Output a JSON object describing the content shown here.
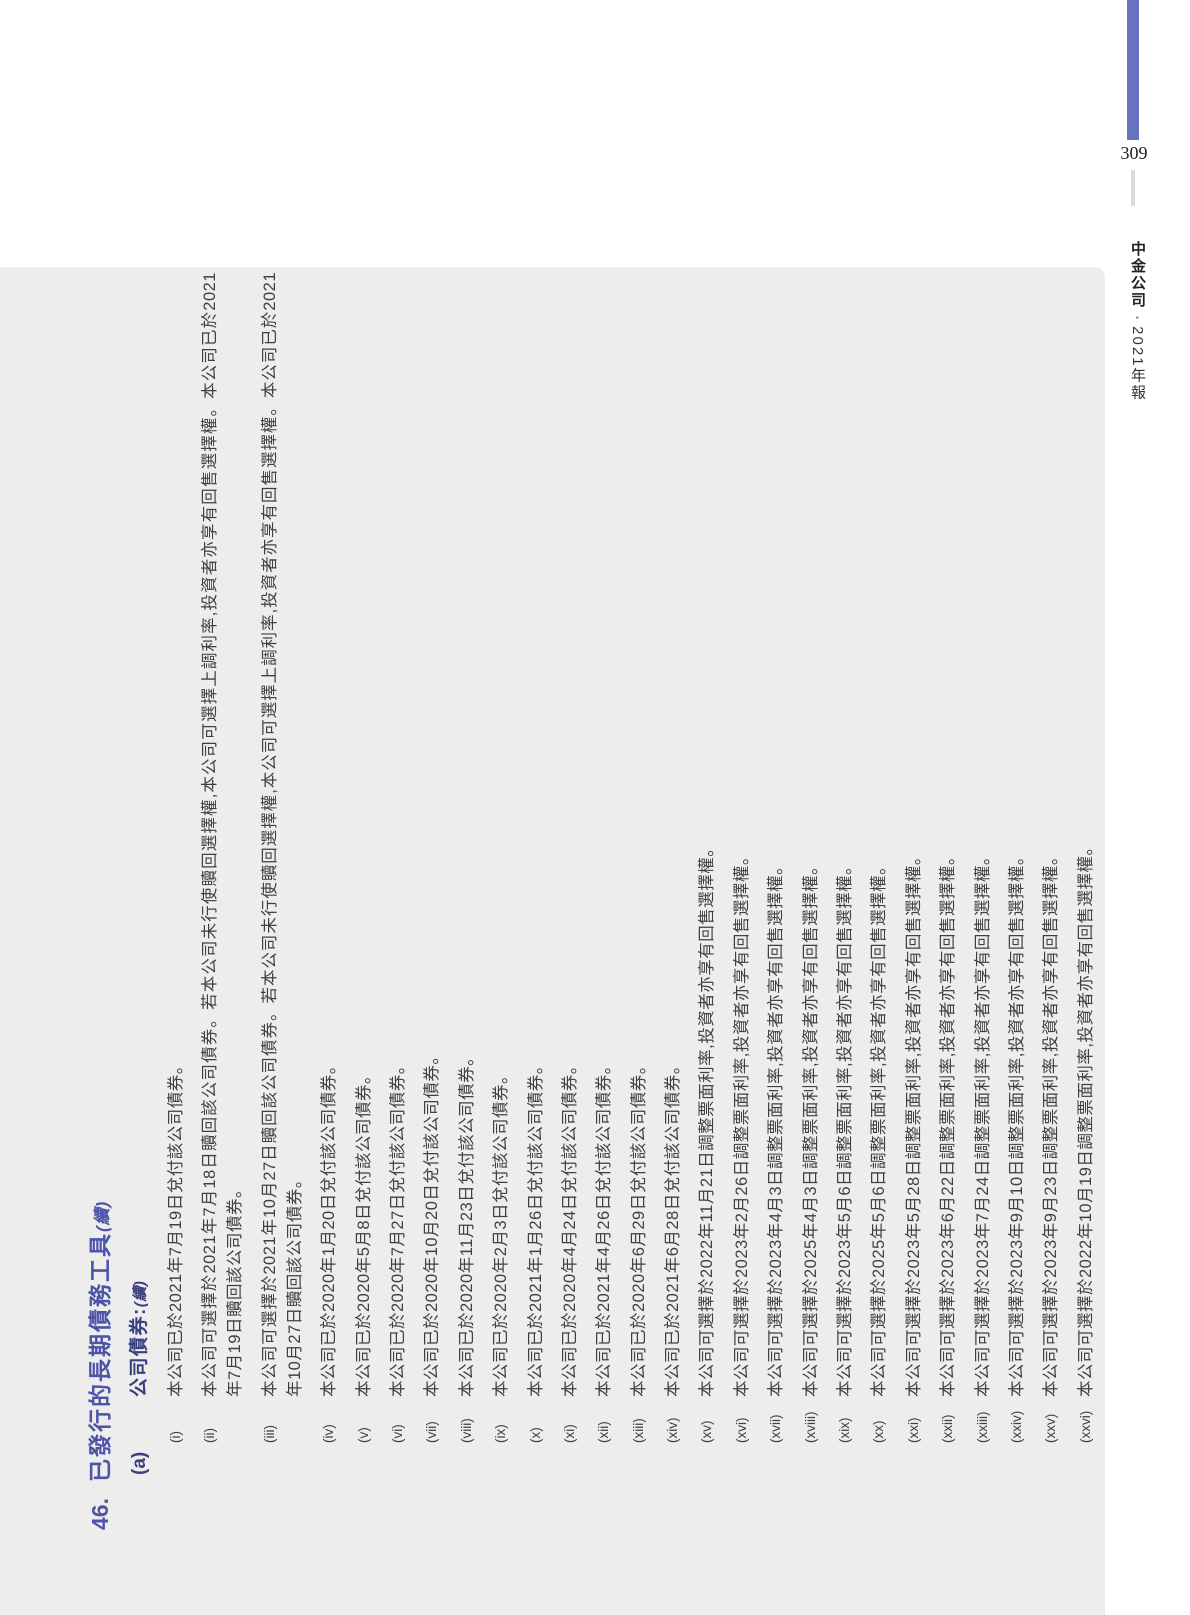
{
  "page_number": "309",
  "spine": {
    "brand": "中金公司",
    "separator": "•",
    "edition": "2021年報"
  },
  "heading": {
    "number": "46.",
    "title": "已發行的長期債務工具",
    "continued": "(續)"
  },
  "subheading": {
    "label": "(a)",
    "title": "公司債券:",
    "continued": "(續)"
  },
  "colors": {
    "accent_bar": "#6874c0",
    "heading_blue": "#4d53a8",
    "subheading_navy": "#3a3f80",
    "panel_bg": "#ededec",
    "body_text": "#404040",
    "tick_gray": "#d9d9d9"
  },
  "items": [
    {
      "label": "(i)",
      "lines": [
        "本公司已於2021年7月19日兌付該公司債券。"
      ]
    },
    {
      "label": "(ii)",
      "lines": [
        "本公司可選擇於2021年7月18日贖回該公司債券。若本公司未行使贖回選擇權,本公司可選擇上調利率,投資者亦享有回售選擇權。本公司已於2021",
        "年7月19日贖回該公司債券。"
      ]
    },
    {
      "label": "(iii)",
      "lines": [
        "本公司可選擇於2021年10月27日贖回該公司債券。若本公司未行使贖回選擇權,本公司可選擇上調利率,投資者亦享有回售選擇權。本公司已於2021",
        "年10月27日贖回該公司債券。"
      ]
    },
    {
      "label": "(iv)",
      "lines": [
        "本公司已於2020年1月20日兌付該公司債券。"
      ]
    },
    {
      "label": "(v)",
      "lines": [
        "本公司已於2020年5月8日兌付該公司債券。"
      ]
    },
    {
      "label": "(vi)",
      "lines": [
        "本公司已於2020年7月27日兌付該公司債券。"
      ]
    },
    {
      "label": "(vii)",
      "lines": [
        "本公司已於2020年10月20日兌付該公司債券。"
      ]
    },
    {
      "label": "(viii)",
      "lines": [
        "本公司已於2020年11月23日兌付該公司債券。"
      ]
    },
    {
      "label": "(ix)",
      "lines": [
        "本公司已於2020年2月3日兌付該公司債券。"
      ]
    },
    {
      "label": "(x)",
      "lines": [
        "本公司已於2021年1月26日兌付該公司債券。"
      ]
    },
    {
      "label": "(xi)",
      "lines": [
        "本公司已於2020年4月24日兌付該公司債券。"
      ]
    },
    {
      "label": "(xii)",
      "lines": [
        "本公司已於2021年4月26日兌付該公司債券。"
      ]
    },
    {
      "label": "(xiii)",
      "lines": [
        "本公司已於2020年6月29日兌付該公司債券。"
      ]
    },
    {
      "label": "(xiv)",
      "lines": [
        "本公司已於2021年6月28日兌付該公司債券。"
      ]
    },
    {
      "label": "(xv)",
      "lines": [
        "本公司可選擇於2022年11月21日調整票面利率,投資者亦享有回售選擇權。"
      ]
    },
    {
      "label": "(xvi)",
      "lines": [
        "本公司可選擇於2023年2月26日調整票面利率,投資者亦享有回售選擇權。"
      ]
    },
    {
      "label": "(xvii)",
      "lines": [
        "本公司可選擇於2023年4月3日調整票面利率,投資者亦享有回售選擇權。"
      ]
    },
    {
      "label": "(xviii)",
      "lines": [
        "本公司可選擇於2025年4月3日調整票面利率,投資者亦享有回售選擇權。"
      ]
    },
    {
      "label": "(xix)",
      "lines": [
        "本公司可選擇於2023年5月6日調整票面利率,投資者亦享有回售選擇權。"
      ]
    },
    {
      "label": "(xx)",
      "lines": [
        "本公司可選擇於2025年5月6日調整票面利率,投資者亦享有回售選擇權。"
      ]
    },
    {
      "label": "(xxi)",
      "lines": [
        "本公司可選擇於2023年5月28日調整票面利率,投資者亦享有回售選擇權。"
      ]
    },
    {
      "label": "(xxii)",
      "lines": [
        "本公司可選擇於2023年6月22日調整票面利率,投資者亦享有回售選擇權。"
      ]
    },
    {
      "label": "(xxiii)",
      "lines": [
        "本公司可選擇於2023年7月24日調整票面利率,投資者亦享有回售選擇權。"
      ]
    },
    {
      "label": "(xxiv)",
      "lines": [
        "本公司可選擇於2023年9月10日調整票面利率,投資者亦享有回售選擇權。"
      ]
    },
    {
      "label": "(xxv)",
      "lines": [
        "本公司可選擇於2023年9月23日調整票面利率,投資者亦享有回售選擇權。"
      ]
    },
    {
      "label": "(xxvi)",
      "lines": [
        "本公司可選擇於2022年10月19日調整票面利率,投資者亦享有回售選擇權。"
      ]
    }
  ]
}
